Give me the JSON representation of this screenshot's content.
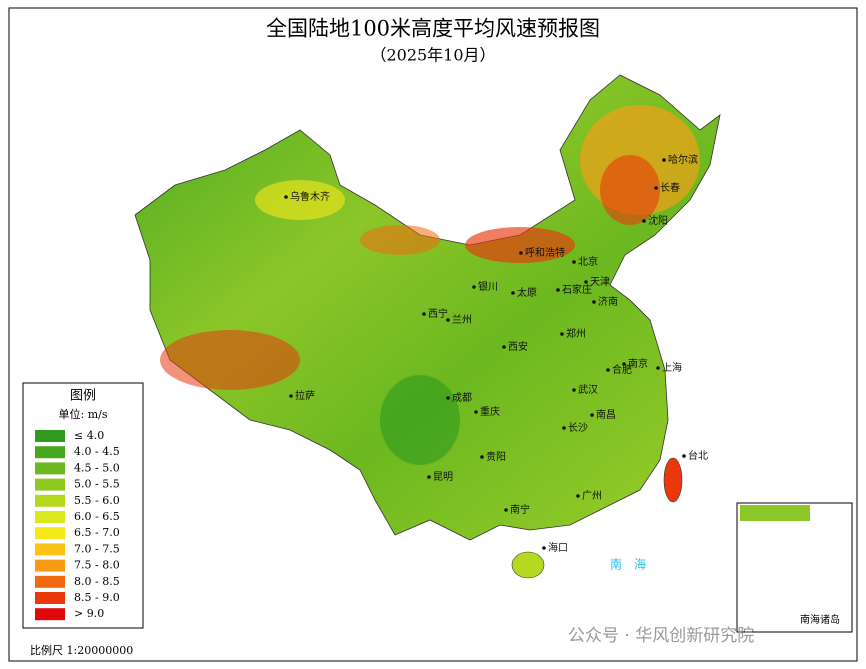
{
  "title": "全国陆地100米高度平均风速预报图",
  "subtitle": "（2025年10月）",
  "legend": {
    "title": "图例",
    "unit": "单位: m/s",
    "items": [
      {
        "label": "≤ 4.0",
        "color": "#2e9a1e"
      },
      {
        "label": "4.0 - 4.5",
        "color": "#45a81f"
      },
      {
        "label": "4.5 - 5.0",
        "color": "#6cb820"
      },
      {
        "label": "5.0 - 5.5",
        "color": "#8fc820"
      },
      {
        "label": "5.5 - 6.0",
        "color": "#b5d820"
      },
      {
        "label": "6.0 - 6.5",
        "color": "#dce820"
      },
      {
        "label": "6.5 - 7.0",
        "color": "#f7e81a"
      },
      {
        "label": "7.0 - 7.5",
        "color": "#fbc318"
      },
      {
        "label": "7.5 - 8.0",
        "color": "#f99a14"
      },
      {
        "label": "8.0 - 8.5",
        "color": "#f26a10"
      },
      {
        "label": "8.5 - 9.0",
        "color": "#e8380c"
      },
      {
        "label": "> 9.0",
        "color": "#e0080a"
      }
    ]
  },
  "cities": [
    "乌鲁木齐",
    "哈尔滨",
    "长春",
    "沈阳",
    "呼和浩特",
    "北京",
    "天津",
    "银川",
    "太原",
    "石家庄",
    "济南",
    "西宁",
    "兰州",
    "郑州",
    "西安",
    "南京",
    "合肥",
    "上海",
    "拉萨",
    "成都",
    "重庆",
    "武汉",
    "长沙",
    "南昌",
    "台北",
    "贵阳",
    "昆明",
    "南宁",
    "广州",
    "海口"
  ],
  "sea_label": "南　海",
  "inset_label": "南海诸岛",
  "scale": "比例尺 1:20000000",
  "watermark": "公众号 · 华风创新研究院"
}
